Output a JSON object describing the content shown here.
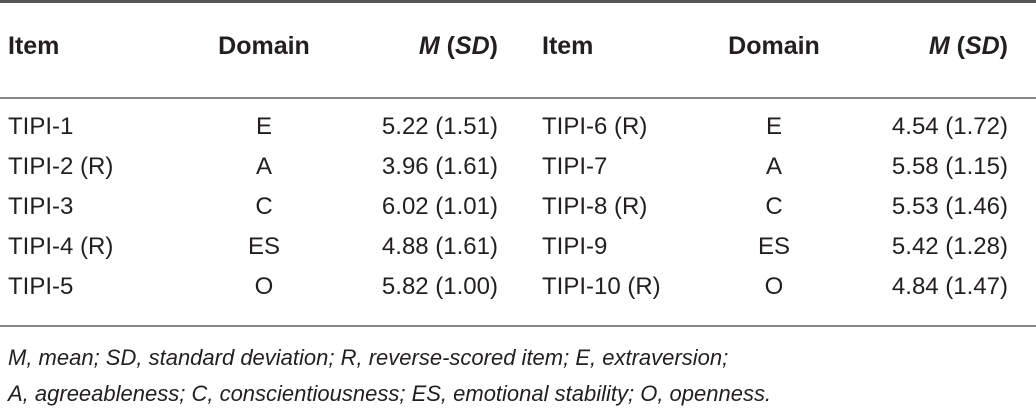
{
  "table": {
    "headers": {
      "item": "Item",
      "domain": "Domain",
      "m_sd_m": "M",
      "m_sd_sd": "SD"
    },
    "rows": [
      {
        "item1": "TIPI-1",
        "domain1": "E",
        "msd1": "5.22 (1.51)",
        "item2": "TIPI-6 (R)",
        "domain2": "E",
        "msd2": "4.54 (1.72)"
      },
      {
        "item1": "TIPI-2 (R)",
        "domain1": "A",
        "msd1": "3.96 (1.61)",
        "item2": "TIPI-7",
        "domain2": "A",
        "msd2": "5.58 (1.15)"
      },
      {
        "item1": "TIPI-3",
        "domain1": "C",
        "msd1": "6.02 (1.01)",
        "item2": "TIPI-8 (R)",
        "domain2": "C",
        "msd2": "5.53 (1.46)"
      },
      {
        "item1": "TIPI-4 (R)",
        "domain1": "ES",
        "msd1": "4.88 (1.61)",
        "item2": "TIPI-9",
        "domain2": "ES",
        "msd2": "5.42 (1.28)"
      },
      {
        "item1": "TIPI-5",
        "domain1": "O",
        "msd1": "5.82 (1.00)",
        "item2": "TIPI-10 (R)",
        "domain2": "O",
        "msd2": "4.84 (1.47)"
      }
    ]
  },
  "footnote": {
    "line1": "M, mean; SD, standard deviation; R, reverse-scored item; E, extraversion;",
    "line2": "A, agreeableness; C, conscientiousness; ES, emotional stability; O, openness."
  }
}
